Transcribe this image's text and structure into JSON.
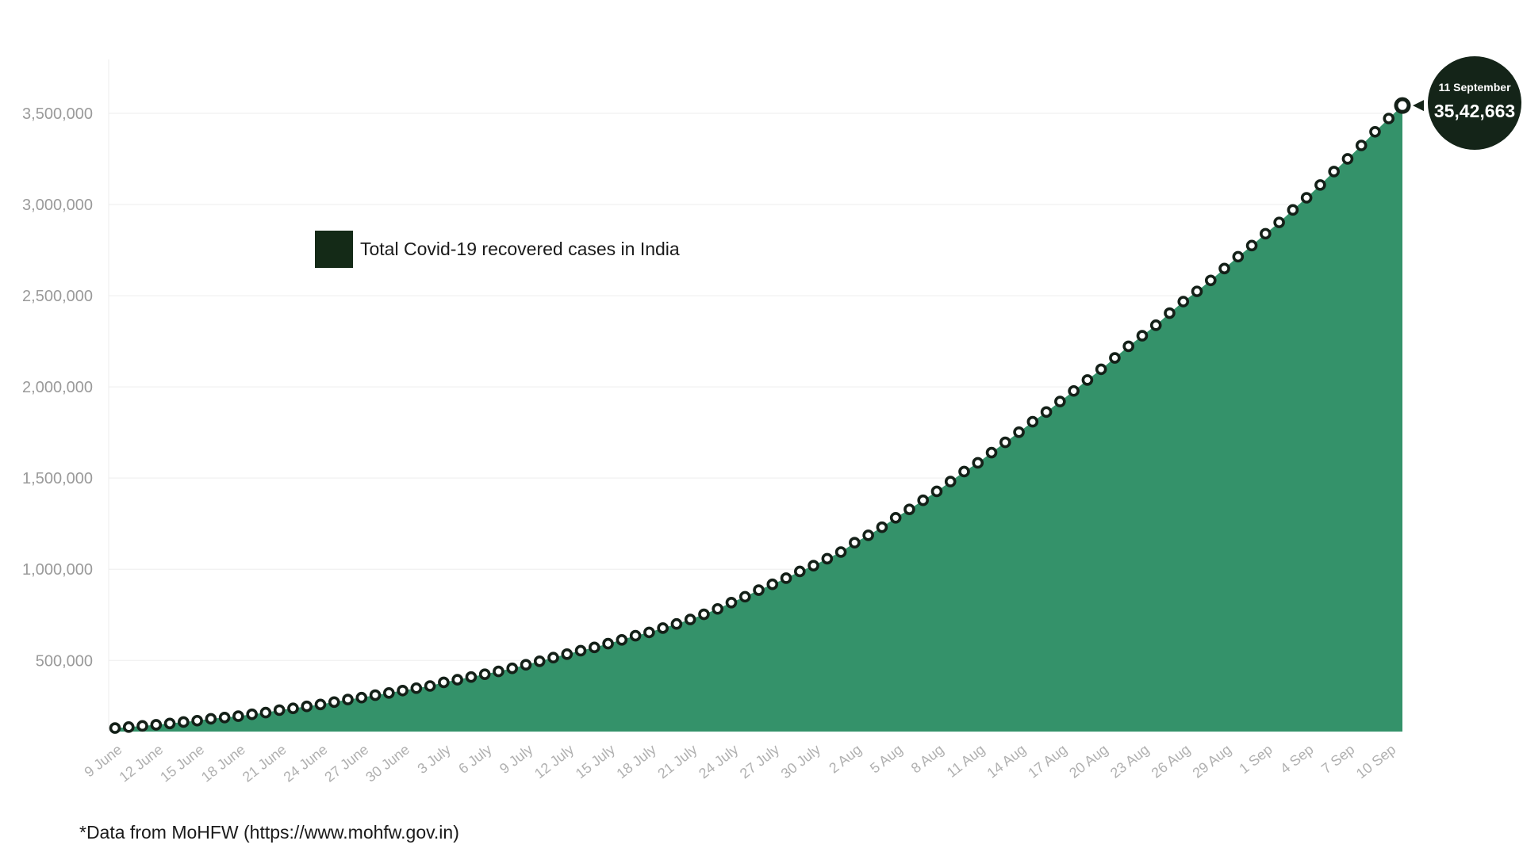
{
  "chart_data": {
    "type": "area",
    "start_date": "9 June",
    "end_label": "10 Sep",
    "x_tick_labels": [
      "9 June",
      "12 June",
      "15 June",
      "18 June",
      "21 June",
      "24 June",
      "27 June",
      "30 June",
      "3 July",
      "6 July",
      "9 July",
      "12 July",
      "15 July",
      "18 July",
      "21 July",
      "24 July",
      "27 July",
      "30 July",
      "2 Aug",
      "5 Aug",
      "8 Aug",
      "11 Aug",
      "14 Aug",
      "17 Aug",
      "20 Aug",
      "23 Aug",
      "26 Aug",
      "29 Aug",
      "1 Sep",
      "4 Sep",
      "7 Sep",
      "10 Sep"
    ],
    "y_tick_labels": [
      "500,000",
      "1,000,000",
      "1,500,000",
      "2,000,000",
      "2,500,000",
      "3,000,000",
      "3,500,000"
    ],
    "y_ticks": [
      500000,
      1000000,
      1500000,
      2000000,
      2500000,
      3000000,
      3500000
    ],
    "ylim": [
      110000,
      3850000
    ],
    "series": [
      {
        "name": "Total Covid-19 recovered cases in India",
        "values": [
          129215,
          134670,
          141029,
          147195,
          154330,
          162379,
          169798,
          180013,
          186935,
          194324,
          204711,
          213831,
          227755,
          237196,
          248190,
          258685,
          271697,
          285637,
          295881,
          309713,
          321723,
          334822,
          347979,
          359860,
          379892,
          394227,
          409083,
          424433,
          439948,
          456831,
          476378,
          495513,
          515386,
          534621,
          553471,
          571460,
          592032,
          612815,
          635757,
          653751,
          677423,
          700087,
          724578,
          753050,
          782607,
          817208,
          849432,
          885577,
          917568,
          951166,
          988029,
          1019735,
          1057805,
          1094374,
          1145629,
          1186203,
          1230509,
          1282215,
          1328336,
          1378105,
          1427005,
          1480884,
          1535743,
          1583489,
          1639599,
          1695982,
          1751555,
          1808936,
          1862258,
          1919842,
          1977779,
          2037870,
          2096664,
          2158946,
          2222577,
          2280566,
          2338035,
          2404585,
          2467758,
          2523771,
          2583948,
          2648998,
          2713933,
          2774801,
          2839882,
          2901908,
          2970492,
          3037151,
          3107223,
          3180865,
          3250429,
          3323950,
          3398844,
          3471783,
          3542663
        ],
        "color": "#34926a"
      }
    ],
    "annotation": {
      "date": "11 September",
      "value": "35,42,663"
    },
    "legend": {
      "label": "Total Covid-19 recovered cases in India",
      "position": "top-left",
      "swatch_color": "#142a17"
    },
    "grid": true,
    "colors": {
      "area": "#34926a",
      "marker_fill": "#ffffff",
      "marker_stroke": "#142018",
      "annotation_bg": "#142418"
    }
  },
  "footnote": "*Data from MoHFW (https://www.mohfw.gov.in)"
}
